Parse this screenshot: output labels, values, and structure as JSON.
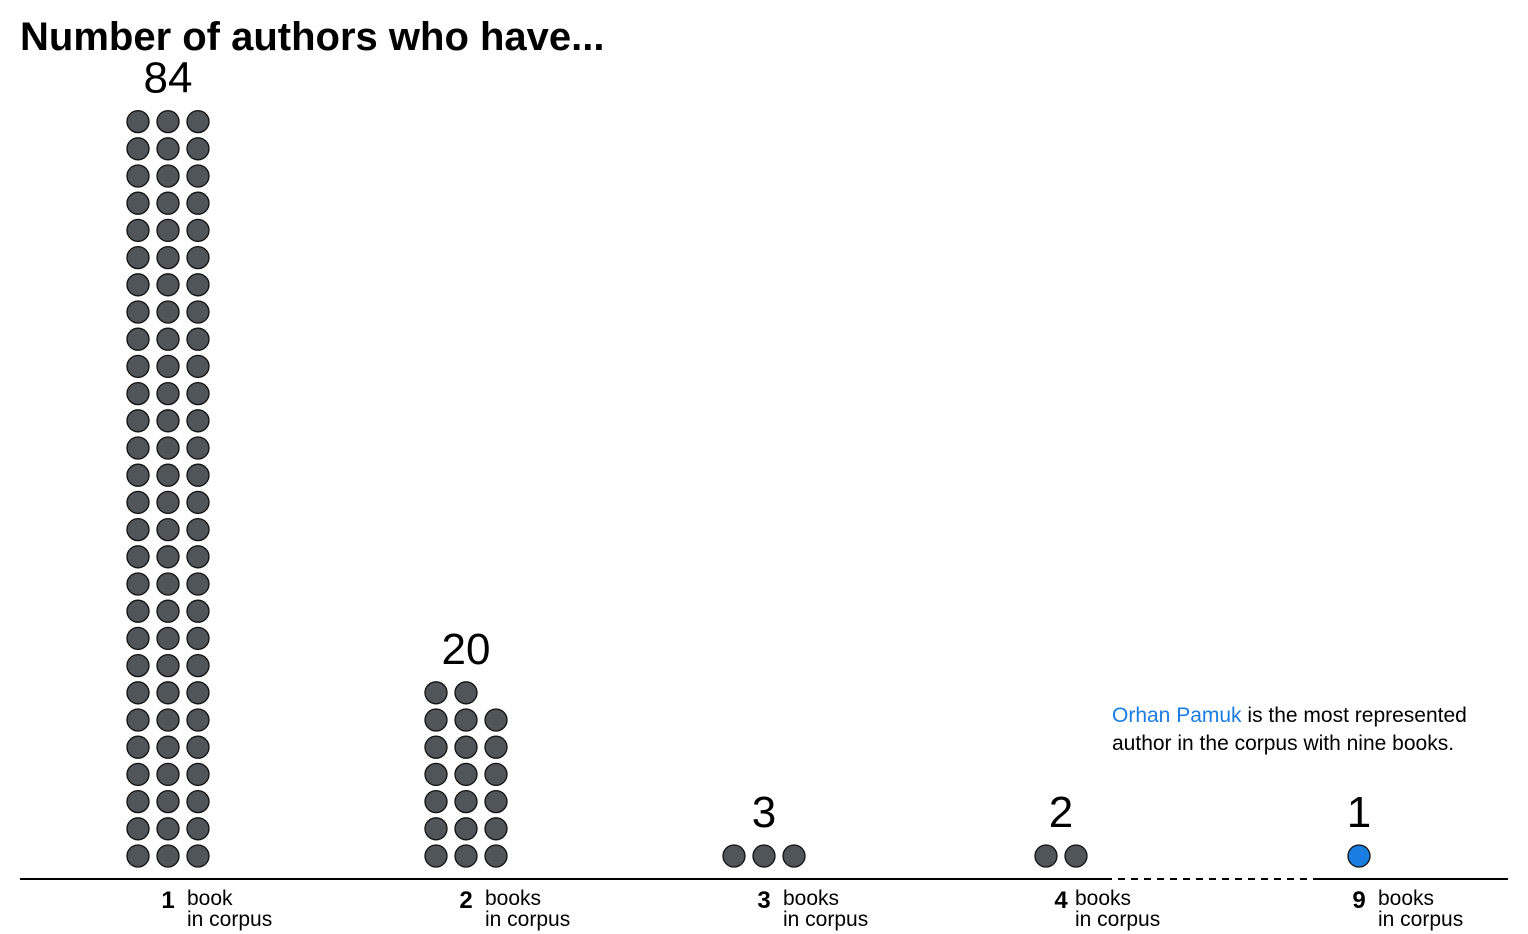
{
  "chart_data": {
    "type": "dot-column",
    "title": "Number of authors who have...",
    "categories": [
      1,
      2,
      3,
      4,
      9
    ],
    "values": [
      84,
      20,
      3,
      2,
      1
    ],
    "dots_per_row": 3,
    "tick_labels": [
      {
        "num": "1",
        "unit_line1": "book",
        "unit_line2": "in corpus"
      },
      {
        "num": "2",
        "unit_line1": "books",
        "unit_line2": "in corpus"
      },
      {
        "num": "3",
        "unit_line1": "books",
        "unit_line2": "in corpus"
      },
      {
        "num": "4",
        "unit_line1": "books",
        "unit_line2": "in corpus"
      },
      {
        "num": "9",
        "unit_line1": "books",
        "unit_line2": "in corpus"
      }
    ],
    "count_labels": [
      "84",
      "20",
      "3",
      "2",
      "1"
    ],
    "axis_break": "between 4 and 9 (dashed)",
    "highlight": {
      "category": 9,
      "color": "#1a7de0"
    },
    "annotation": {
      "highlight_text": "Orhan Pamuk",
      "line1_rest": " is the most represented",
      "line2": "author in the corpus with nine books."
    },
    "colors": {
      "dot_fill": "#50555a",
      "dot_stroke": "#111111",
      "highlight": "#1a7de0",
      "axis": "#000000"
    },
    "grid": false,
    "legend": "none"
  }
}
